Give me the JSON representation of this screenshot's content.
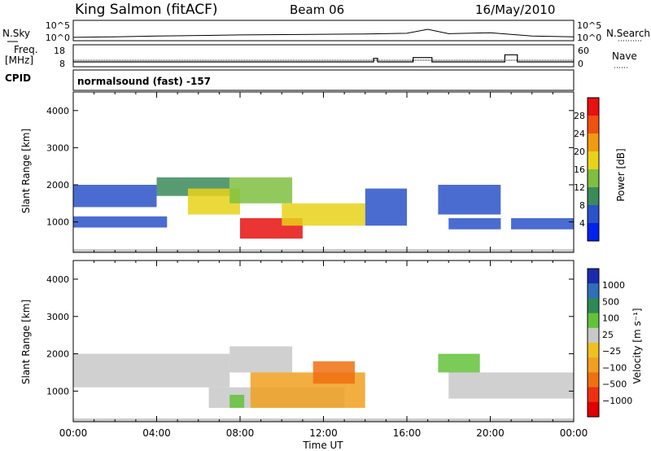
{
  "header": {
    "station": "King Salmon (fitACF)",
    "beam": "Beam 06",
    "date": "16/May/2010"
  },
  "top_panels": {
    "nsky_label": "N.Sky",
    "nsearch_label": "N.Search",
    "freq_label_1": "Freq.",
    "freq_label_2": "[MHz]",
    "nave_label": "Nave",
    "cpid_label": "CPID",
    "mode_text": "normalsound (fast) -157",
    "noise_ticks_left": [
      "10^5",
      "10^0"
    ],
    "noise_ticks_right": [
      "10^5",
      "10^0"
    ],
    "freq_ticks": [
      "18",
      "8"
    ],
    "nave_ticks": [
      "60",
      "0"
    ]
  },
  "colors": {
    "power_scale": [
      "#0022ee",
      "#2a52c9",
      "#3b8a5a",
      "#7fbf3f",
      "#e8d21a",
      "#f29a10",
      "#f05010",
      "#e81010"
    ],
    "velocity_scale": [
      "#1a2bb0",
      "#2f6fb8",
      "#2d8a55",
      "#63c23a",
      "#c8c8c8",
      "#f0c020",
      "#f0a020",
      "#f07010",
      "#ee3010",
      "#e00000"
    ]
  },
  "chart_data": [
    {
      "type": "line",
      "panel": "noise",
      "ylabel_left": "N.Sky",
      "ylabel_right": "N.Search",
      "xlim": [
        0,
        24
      ],
      "y_scale": "log",
      "x": [
        0,
        2,
        4,
        6,
        8,
        10,
        12,
        14,
        16,
        17,
        18,
        20,
        22,
        24
      ],
      "series": [
        {
          "values": [
            2,
            3,
            5,
            8,
            12,
            15,
            20,
            25,
            40,
            800,
            30,
            60,
            5,
            3
          ]
        }
      ]
    },
    {
      "type": "line",
      "panel": "frequency",
      "ylabel_left": "Freq. [MHz]",
      "ylabel_right": "Nave",
      "xlim": [
        0,
        24
      ],
      "ylim_left": [
        8,
        18
      ],
      "ylim_right": [
        0,
        60
      ],
      "series": [
        {
          "x": [
            0,
            24
          ],
          "values": [
            11,
            11
          ]
        },
        {
          "x": [
            0,
            14.4,
            14.4,
            14.6,
            14.6,
            16.3,
            16.3,
            17.2,
            17.2,
            20.7,
            20.7,
            21.3,
            21.3,
            24
          ],
          "values": [
            12,
            12,
            25,
            25,
            12,
            12,
            28,
            28,
            12,
            12,
            38,
            38,
            12,
            12
          ]
        }
      ]
    },
    {
      "type": "heatmap",
      "panel": "power",
      "ylabel": "Slant Range [km]",
      "colorbar_label": "Power [dB]",
      "colorbar_ticks": [
        "28",
        "24",
        "20",
        "16",
        "12",
        "8",
        "4"
      ],
      "colorbar_range": [
        0,
        32
      ],
      "xlim": [
        0,
        24
      ],
      "ylim": [
        180,
        4500
      ],
      "yticks": [
        "4000",
        "3000",
        "2000",
        "1000"
      ],
      "regions": [
        {
          "x": [
            0,
            4
          ],
          "range": [
            1400,
            2000
          ],
          "value": 6
        },
        {
          "x": [
            0,
            4.5
          ],
          "range": [
            850,
            1150
          ],
          "value": 5
        },
        {
          "x": [
            4,
            7.5
          ],
          "range": [
            1700,
            2200
          ],
          "value": 10
        },
        {
          "x": [
            5.5,
            8
          ],
          "range": [
            1200,
            1900
          ],
          "value": 16
        },
        {
          "x": [
            7.5,
            10.5
          ],
          "range": [
            1500,
            2200
          ],
          "value": 14
        },
        {
          "x": [
            8,
            11
          ],
          "range": [
            550,
            1100
          ],
          "value": 28
        },
        {
          "x": [
            10,
            14
          ],
          "range": [
            900,
            1500
          ],
          "value": 18
        },
        {
          "x": [
            14,
            16
          ],
          "range": [
            900,
            1900
          ],
          "value": 4
        },
        {
          "x": [
            17.5,
            20.5
          ],
          "range": [
            1200,
            2000
          ],
          "value": 6
        },
        {
          "x": [
            18,
            20.5
          ],
          "range": [
            800,
            1100
          ],
          "value": 6
        },
        {
          "x": [
            21,
            24
          ],
          "range": [
            800,
            1100
          ],
          "value": 5
        }
      ]
    },
    {
      "type": "heatmap",
      "panel": "velocity",
      "ylabel": "Slant Range [km]",
      "colorbar_label": "Velocity [m s⁻¹]",
      "colorbar_ticks": [
        "1000",
        "500",
        "100",
        "25",
        "−25",
        "−100",
        "−500",
        "−1000"
      ],
      "xlim": [
        0,
        24
      ],
      "xlabel": "Time UT",
      "xticks": [
        "00:00",
        "04:00",
        "08:00",
        "12:00",
        "16:00",
        "20:00",
        "00:00"
      ],
      "ylim": [
        180,
        4500
      ],
      "yticks": [
        "4000",
        "3000",
        "2000",
        "1000"
      ],
      "regions": [
        {
          "x": [
            0,
            7.5
          ],
          "range": [
            1100,
            2000
          ],
          "value": 0
        },
        {
          "x": [
            7.5,
            10.5
          ],
          "range": [
            1500,
            2200
          ],
          "value": 0
        },
        {
          "x": [
            6.5,
            13
          ],
          "range": [
            550,
            1100
          ],
          "value": 0
        },
        {
          "x": [
            8.5,
            14
          ],
          "range": [
            550,
            1500
          ],
          "value": -150
        },
        {
          "x": [
            11.5,
            13.5
          ],
          "range": [
            1200,
            1800
          ],
          "value": -350
        },
        {
          "x": [
            7.5,
            8.2
          ],
          "range": [
            550,
            900
          ],
          "value": 100
        },
        {
          "x": [
            17.5,
            19.5
          ],
          "range": [
            1500,
            2000
          ],
          "value": 100
        },
        {
          "x": [
            18,
            24
          ],
          "range": [
            800,
            1500
          ],
          "value": 0
        }
      ]
    }
  ]
}
